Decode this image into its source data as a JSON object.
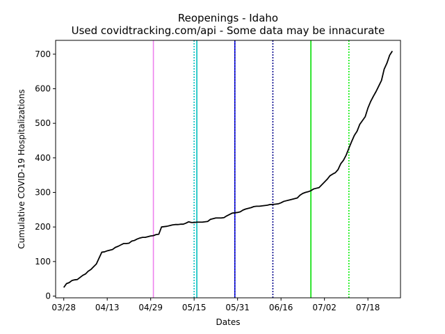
{
  "chart_data": {
    "type": "line",
    "title": "Reopenings - Idaho",
    "subtitle": "Used covidtracking.com/api - Some data may be innacurate",
    "xlabel": "Dates",
    "ylabel": "Cumulative COVID-19 Hospitalizations",
    "x_ticks": [
      "03/28",
      "04/13",
      "04/29",
      "05/15",
      "05/31",
      "06/16",
      "07/02",
      "07/18"
    ],
    "y_ticks": [
      0,
      100,
      200,
      300,
      400,
      500,
      600,
      700
    ],
    "xlim": [
      "03/25",
      "07/30"
    ],
    "ylim": [
      -5,
      740
    ],
    "grid": false,
    "series": [
      {
        "color": "#000000",
        "points": [
          [
            "03/28",
            25
          ],
          [
            "03/29",
            36
          ],
          [
            "03/30",
            39
          ],
          [
            "03/31",
            45
          ],
          [
            "04/01",
            47
          ],
          [
            "04/02",
            48
          ],
          [
            "04/03",
            54
          ],
          [
            "04/04",
            60
          ],
          [
            "04/05",
            64
          ],
          [
            "04/06",
            72
          ],
          [
            "04/07",
            77
          ],
          [
            "04/08",
            85
          ],
          [
            "04/09",
            93
          ],
          [
            "04/10",
            110
          ],
          [
            "04/11",
            127
          ],
          [
            "04/12",
            128
          ],
          [
            "04/13",
            131
          ],
          [
            "04/14",
            133
          ],
          [
            "04/15",
            135
          ],
          [
            "04/16",
            141
          ],
          [
            "04/17",
            144
          ],
          [
            "04/18",
            148
          ],
          [
            "04/19",
            152
          ],
          [
            "04/20",
            152
          ],
          [
            "04/21",
            153
          ],
          [
            "04/22",
            159
          ],
          [
            "04/23",
            161
          ],
          [
            "04/24",
            165
          ],
          [
            "04/25",
            168
          ],
          [
            "04/26",
            170
          ],
          [
            "04/27",
            170
          ],
          [
            "04/28",
            172
          ],
          [
            "04/29",
            174
          ],
          [
            "04/30",
            175
          ],
          [
            "05/01",
            178
          ],
          [
            "05/02",
            179
          ],
          [
            "05/03",
            200
          ],
          [
            "05/04",
            201
          ],
          [
            "05/05",
            202
          ],
          [
            "05/06",
            204
          ],
          [
            "05/07",
            206
          ],
          [
            "05/08",
            207
          ],
          [
            "05/09",
            207
          ],
          [
            "05/10",
            208
          ],
          [
            "05/11",
            208
          ],
          [
            "05/12",
            211
          ],
          [
            "05/13",
            215
          ],
          [
            "05/14",
            213
          ],
          [
            "05/15",
            213
          ],
          [
            "05/16",
            214
          ],
          [
            "05/17",
            214
          ],
          [
            "05/18",
            214
          ],
          [
            "05/19",
            215
          ],
          [
            "05/20",
            216
          ],
          [
            "05/21",
            222
          ],
          [
            "05/22",
            224
          ],
          [
            "05/23",
            226
          ],
          [
            "05/24",
            226
          ],
          [
            "05/25",
            226
          ],
          [
            "05/26",
            227
          ],
          [
            "05/27",
            232
          ],
          [
            "05/28",
            236
          ],
          [
            "05/29",
            240
          ],
          [
            "05/30",
            241
          ],
          [
            "05/31",
            242
          ],
          [
            "06/01",
            244
          ],
          [
            "06/02",
            249
          ],
          [
            "06/03",
            252
          ],
          [
            "06/04",
            254
          ],
          [
            "06/05",
            256
          ],
          [
            "06/06",
            259
          ],
          [
            "06/07",
            260
          ],
          [
            "06/08",
            260
          ],
          [
            "06/09",
            261
          ],
          [
            "06/10",
            262
          ],
          [
            "06/11",
            263
          ],
          [
            "06/12",
            265
          ],
          [
            "06/13",
            265
          ],
          [
            "06/14",
            266
          ],
          [
            "06/15",
            267
          ],
          [
            "06/16",
            270
          ],
          [
            "06/17",
            274
          ],
          [
            "06/18",
            276
          ],
          [
            "06/19",
            278
          ],
          [
            "06/20",
            280
          ],
          [
            "06/21",
            282
          ],
          [
            "06/22",
            284
          ],
          [
            "06/23",
            292
          ],
          [
            "06/24",
            297
          ],
          [
            "06/25",
            300
          ],
          [
            "06/26",
            302
          ],
          [
            "06/27",
            305
          ],
          [
            "06/28",
            310
          ],
          [
            "06/29",
            312
          ],
          [
            "06/30",
            314
          ],
          [
            "07/01",
            322
          ],
          [
            "07/02",
            330
          ],
          [
            "07/03",
            338
          ],
          [
            "07/04",
            348
          ],
          [
            "07/05",
            353
          ],
          [
            "07/06",
            357
          ],
          [
            "07/07",
            366
          ],
          [
            "07/08",
            383
          ],
          [
            "07/09",
            393
          ],
          [
            "07/10",
            408
          ],
          [
            "07/11",
            428
          ],
          [
            "07/12",
            447
          ],
          [
            "07/13",
            465
          ],
          [
            "07/14",
            477
          ],
          [
            "07/15",
            497
          ],
          [
            "07/16",
            508
          ],
          [
            "07/17",
            519
          ],
          [
            "07/18",
            544
          ],
          [
            "07/19",
            563
          ],
          [
            "07/20",
            578
          ],
          [
            "07/21",
            592
          ],
          [
            "07/22",
            608
          ],
          [
            "07/23",
            624
          ],
          [
            "07/24",
            657
          ],
          [
            "07/25",
            674
          ],
          [
            "07/26",
            697
          ],
          [
            "07/27",
            709
          ]
        ]
      }
    ],
    "vertical_lines": [
      {
        "date": "04/30",
        "color": "#ee82ee",
        "style": "solid"
      },
      {
        "date": "05/15",
        "color": "#00bfbf",
        "style": "dotted"
      },
      {
        "date": "05/16",
        "color": "#00bfbf",
        "style": "solid"
      },
      {
        "date": "05/30",
        "color": "#0000ff",
        "style": "solid"
      },
      {
        "date": "05/30",
        "color": "#00008b",
        "style": "dotted"
      },
      {
        "date": "06/13",
        "color": "#00008b",
        "style": "dotted"
      },
      {
        "date": "06/27",
        "color": "#00dd00",
        "style": "solid"
      },
      {
        "date": "07/11",
        "color": "#00ee00",
        "style": "dotted"
      }
    ]
  }
}
